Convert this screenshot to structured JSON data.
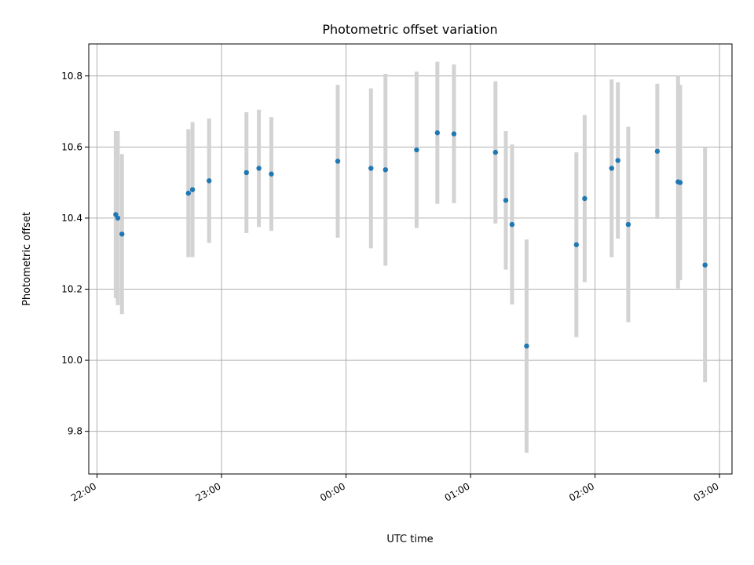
{
  "chart_data": {
    "type": "scatter",
    "title": "Photometric offset variation",
    "xlabel": "UTC time",
    "ylabel": "Photometric offset",
    "x_axis_type": "time",
    "x_ticks": [
      "22:00",
      "23:00",
      "00:00",
      "01:00",
      "02:00",
      "03:00"
    ],
    "y_ticks": [
      9.8,
      10.0,
      10.2,
      10.4,
      10.6,
      10.8
    ],
    "xlim": [
      "21:56",
      "03:06"
    ],
    "ylim": [
      9.68,
      10.89
    ],
    "grid": true,
    "colors": {
      "points": "#1f77b4",
      "error_bars": "#d3d3d3",
      "grid": "#b0b0b0"
    },
    "points": [
      {
        "x": "22:09",
        "y": 10.41,
        "err": 0.235
      },
      {
        "x": "22:10",
        "y": 10.4,
        "err": 0.245
      },
      {
        "x": "22:12",
        "y": 10.355,
        "err": 0.225
      },
      {
        "x": "22:44",
        "y": 10.47,
        "err": 0.18
      },
      {
        "x": "22:46",
        "y": 10.48,
        "err": 0.19
      },
      {
        "x": "22:54",
        "y": 10.505,
        "err": 0.175
      },
      {
        "x": "23:12",
        "y": 10.528,
        "err": 0.17
      },
      {
        "x": "23:18",
        "y": 10.54,
        "err": 0.165
      },
      {
        "x": "23:24",
        "y": 10.524,
        "err": 0.16
      },
      {
        "x": "23:56",
        "y": 10.56,
        "err": 0.215
      },
      {
        "x": "00:12",
        "y": 10.54,
        "err": 0.225
      },
      {
        "x": "00:19",
        "y": 10.536,
        "err": 0.27
      },
      {
        "x": "00:34",
        "y": 10.592,
        "err": 0.22
      },
      {
        "x": "00:44",
        "y": 10.64,
        "err": 0.2
      },
      {
        "x": "00:52",
        "y": 10.637,
        "err": 0.195
      },
      {
        "x": "01:12",
        "y": 10.585,
        "err": 0.2
      },
      {
        "x": "01:17",
        "y": 10.45,
        "err": 0.195
      },
      {
        "x": "01:20",
        "y": 10.382,
        "err": 0.225
      },
      {
        "x": "01:27",
        "y": 10.04,
        "err": 0.3
      },
      {
        "x": "01:51",
        "y": 10.325,
        "err": 0.26
      },
      {
        "x": "01:55",
        "y": 10.455,
        "err": 0.235
      },
      {
        "x": "02:08",
        "y": 10.54,
        "err": 0.25
      },
      {
        "x": "02:11",
        "y": 10.562,
        "err": 0.22
      },
      {
        "x": "02:16",
        "y": 10.382,
        "err": 0.275
      },
      {
        "x": "02:30",
        "y": 10.588,
        "err": 0.19
      },
      {
        "x": "02:40",
        "y": 10.502,
        "err": 0.3
      },
      {
        "x": "02:41",
        "y": 10.5,
        "err": 0.275
      },
      {
        "x": "02:53",
        "y": 10.268,
        "err": 0.33
      }
    ]
  }
}
